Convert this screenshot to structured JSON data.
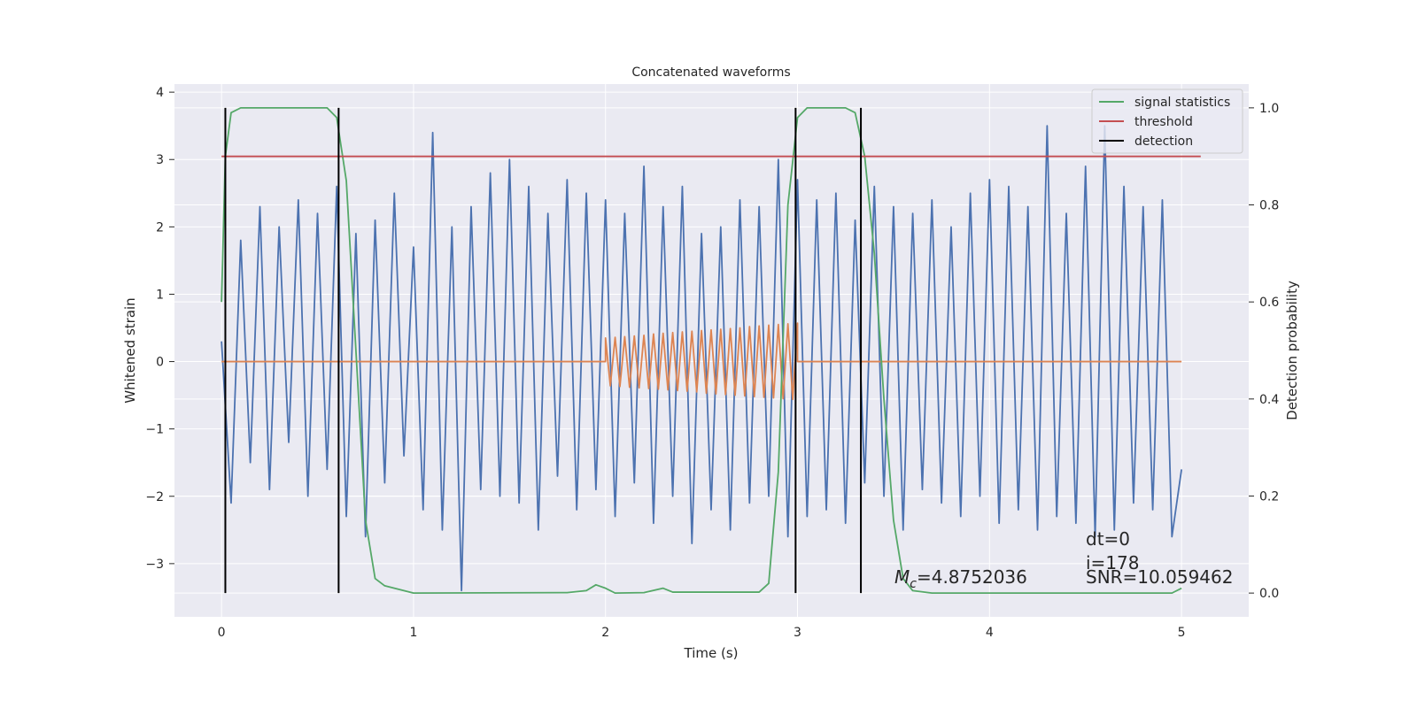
{
  "chart_data": {
    "type": "line",
    "title": "Concatenated waveforms",
    "x_label": "Time (s)",
    "y_label": "Whitened strain",
    "y2_label": "Detection probability",
    "xlim": [
      -0.245,
      5.35
    ],
    "ylim": [
      -3.79,
      4.12
    ],
    "y2lim": [
      -0.049,
      1.049
    ],
    "xticks": [
      0,
      1,
      2,
      3,
      4,
      5
    ],
    "yticks": [
      {
        "value": -3,
        "label": "−3"
      },
      {
        "value": -2,
        "label": "−2"
      },
      {
        "value": -1,
        "label": "−1"
      },
      0,
      1,
      2,
      3,
      4
    ],
    "y2ticks": [
      {
        "value": 0,
        "label": "0.0"
      },
      0.2,
      0.4,
      0.6,
      0.8,
      {
        "value": 1,
        "label": "1.0"
      }
    ],
    "grid": true,
    "legend": "upper right",
    "series": [
      {
        "color": "#4c72b0",
        "x": [
          0,
          0.05,
          0.1,
          0.15,
          0.2,
          0.25,
          0.3,
          0.35,
          0.4,
          0.45,
          0.5,
          0.55,
          0.6,
          0.65,
          0.7,
          0.75,
          0.8,
          0.85,
          0.9,
          0.95,
          1,
          1.05,
          1.1,
          1.15,
          1.2,
          1.25,
          1.3,
          1.35,
          1.4,
          1.45,
          1.5,
          1.55,
          1.6,
          1.65,
          1.7,
          1.75,
          1.8,
          1.85,
          1.9,
          1.95,
          2,
          2.05,
          2.1,
          2.15,
          2.2,
          2.25,
          2.3,
          2.35,
          2.4,
          2.45,
          2.5,
          2.55,
          2.6,
          2.65,
          2.7,
          2.75,
          2.8,
          2.85,
          2.9,
          2.95,
          3,
          3.05,
          3.1,
          3.15,
          3.2,
          3.25,
          3.3,
          3.35,
          3.4,
          3.45,
          3.5,
          3.55,
          3.6,
          3.65,
          3.7,
          3.75,
          3.8,
          3.85,
          3.9,
          3.95,
          4,
          4.05,
          4.1,
          4.15,
          4.2,
          4.25,
          4.3,
          4.35,
          4.4,
          4.45,
          4.5,
          4.55,
          4.6,
          4.65,
          4.7,
          4.75,
          4.8,
          4.85,
          4.9,
          4.95,
          5
        ],
        "values": [
          0.3,
          -2.1,
          1.8,
          -1.5,
          2.3,
          -1.9,
          2.0,
          -1.2,
          2.4,
          -2.0,
          2.2,
          -1.6,
          2.6,
          -2.3,
          1.9,
          -2.6,
          2.1,
          -1.8,
          2.5,
          -1.4,
          1.7,
          -2.2,
          3.4,
          -2.5,
          2.0,
          -3.4,
          2.3,
          -1.9,
          2.8,
          -2.0,
          3.0,
          -2.1,
          2.6,
          -2.5,
          2.2,
          -1.7,
          2.7,
          -2.2,
          2.5,
          -1.9,
          2.4,
          -2.3,
          2.2,
          -1.8,
          2.9,
          -2.4,
          2.3,
          -2.0,
          2.6,
          -2.7,
          1.9,
          -2.2,
          2.0,
          -2.5,
          2.4,
          -2.1,
          2.3,
          -2.0,
          3.0,
          -2.6,
          2.7,
          -2.3,
          2.4,
          -2.2,
          2.5,
          -2.4,
          2.1,
          -1.8,
          2.6,
          -2.0,
          2.3,
          -2.5,
          2.2,
          -1.9,
          2.4,
          -2.1,
          2.0,
          -2.3,
          2.5,
          -2.0,
          2.7,
          -2.4,
          2.6,
          -2.2,
          2.3,
          -2.5,
          3.5,
          -2.3,
          2.2,
          -2.4,
          2.9,
          -2.6,
          3.5,
          -2.5,
          2.6,
          -2.1,
          2.3,
          -2.2,
          2.4,
          -2.6,
          -1.6
        ]
      },
      {
        "color": "#dd8452",
        "x": [
          0,
          2,
          2,
          2.025,
          2.05,
          2.075,
          2.1,
          2.125,
          2.15,
          2.175,
          2.2,
          2.225,
          2.25,
          2.275,
          2.3,
          2.325,
          2.35,
          2.375,
          2.4,
          2.425,
          2.45,
          2.475,
          2.5,
          2.525,
          2.55,
          2.575,
          2.6,
          2.625,
          2.65,
          2.675,
          2.7,
          2.725,
          2.75,
          2.775,
          2.8,
          2.825,
          2.85,
          2.875,
          2.9,
          2.925,
          2.95,
          2.975,
          3,
          3,
          5
        ],
        "values": [
          0,
          0,
          0.35,
          -0.36,
          0.36,
          -0.37,
          0.37,
          -0.38,
          0.38,
          -0.39,
          0.39,
          -0.4,
          0.41,
          -0.41,
          0.42,
          -0.42,
          0.43,
          -0.43,
          0.44,
          -0.44,
          0.45,
          -0.45,
          0.46,
          -0.47,
          0.47,
          -0.48,
          0.48,
          -0.49,
          0.49,
          -0.5,
          0.5,
          -0.51,
          0.52,
          -0.52,
          0.53,
          -0.53,
          0.54,
          -0.54,
          0.55,
          -0.55,
          0.56,
          -0.56,
          0.57,
          0,
          0
        ]
      },
      {
        "name": "signal statistics",
        "color": "#55a868",
        "axis": "y2",
        "x": [
          0,
          0.02,
          0.05,
          0.1,
          0.55,
          0.6,
          0.65,
          0.7,
          0.75,
          0.8,
          0.85,
          0.9,
          1.0,
          1.8,
          1.9,
          1.95,
          2.0,
          2.05,
          2.2,
          2.3,
          2.35,
          2.8,
          2.85,
          2.9,
          2.95,
          3.0,
          3.05,
          3.25,
          3.3,
          3.35,
          3.4,
          3.45,
          3.5,
          3.55,
          3.6,
          3.7,
          4.95,
          5.0
        ],
        "values": [
          0.6,
          0.9,
          0.99,
          1.0,
          1.0,
          0.98,
          0.85,
          0.5,
          0.15,
          0.03,
          0.015,
          0.01,
          0.0,
          0.001,
          0.005,
          0.017,
          0.01,
          0.0,
          0.001,
          0.01,
          0.002,
          0.002,
          0.02,
          0.25,
          0.8,
          0.98,
          1.0,
          1.0,
          0.99,
          0.9,
          0.7,
          0.4,
          0.15,
          0.03,
          0.005,
          0.0,
          0.0,
          0.01
        ]
      },
      {
        "name": "threshold",
        "color": "#c44e52",
        "axis": "y2",
        "x": [
          0,
          5.1
        ],
        "values": [
          0.9,
          0.9
        ]
      },
      {
        "name": "detection",
        "color": "#000000",
        "axis": "y2",
        "kind": "vlines",
        "x": [
          0.02,
          0.61,
          2.99,
          3.33
        ],
        "ymin": 0,
        "ymax": 1
      }
    ],
    "annotations": {
      "mass": {
        "symbol": "M",
        "sub": "c",
        "text": "=4.8752036"
      },
      "lines": [
        "dt=0",
        "i=178",
        "SNR=10.059462"
      ]
    }
  }
}
